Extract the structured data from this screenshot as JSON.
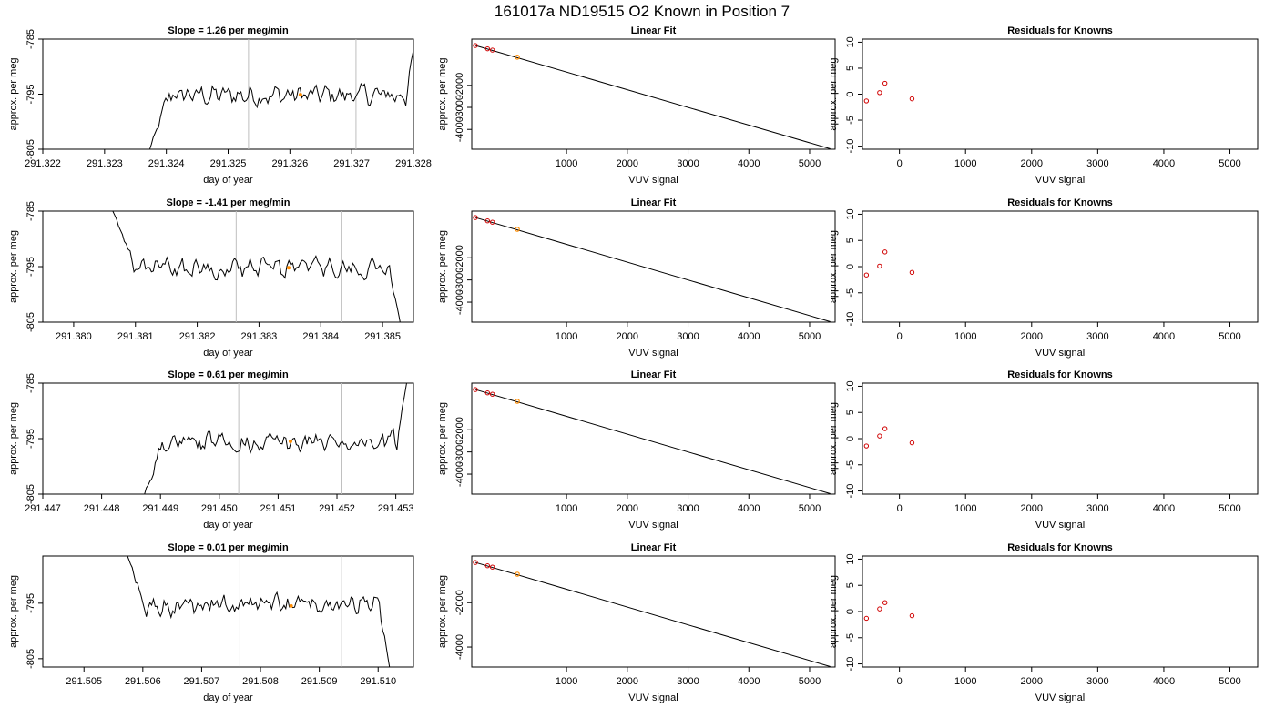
{
  "main_title": "161017a     ND19515   O2 Known in Position  7",
  "colors": {
    "trace": "#000000",
    "marker": "#FF8C00",
    "residual": "#D00000",
    "vline": "#BEBEBE"
  },
  "chart_data": [
    {
      "type": "line",
      "row": 0,
      "col": 0,
      "title": "Slope =  1.26  per meg/min",
      "xlabel": "day of year",
      "ylabel": "approx. per meg",
      "xlim": [
        291.322,
        291.328
      ],
      "ylim": [
        -805,
        -785
      ],
      "x_ticks": [
        "291.322",
        "291.323",
        "291.324",
        "291.325",
        "291.326",
        "291.327",
        "291.328"
      ],
      "y_ticks": [
        "-805",
        "-795",
        "-785"
      ],
      "x_start": 291.3237,
      "x_end": 291.32805,
      "trace_start_y": -806,
      "trace_end_y": -784,
      "trace_mean": -795.2,
      "trace_amplitude": 2.5,
      "vlines": [
        291.32533,
        291.32707
      ],
      "marker": {
        "x": 291.32617,
        "y": -795.1
      }
    },
    {
      "type": "scatter",
      "row": 0,
      "col": 1,
      "title": "Linear Fit",
      "xlabel": "VUV signal",
      "ylabel": "approx. per meg",
      "xlim": [
        -560,
        5420
      ],
      "ylim": [
        -4900,
        100
      ],
      "x_ticks": [
        "1000",
        "2000",
        "3000",
        "4000",
        "5000"
      ],
      "y_ticks": [
        "-4000",
        "-3000",
        "-2000"
      ],
      "line_from": [
        -500,
        -190
      ],
      "line_to": [
        5340,
        -4880
      ],
      "points": [
        [
          -500,
          -190
        ],
        [
          -300,
          -340
        ],
        [
          -220,
          -400
        ]
      ],
      "marker": {
        "x": 190,
        "y": -720
      }
    },
    {
      "type": "scatter",
      "row": 0,
      "col": 2,
      "title": "Residuals for Knowns",
      "xlabel": "VUV signal",
      "ylabel": "approx. per meg",
      "xlim": [
        -560,
        5420
      ],
      "ylim": [
        -10.6,
        10.6
      ],
      "x_ticks": [
        "0",
        "1000",
        "2000",
        "3000",
        "4000",
        "5000"
      ],
      "y_ticks": [
        "-10",
        "-5",
        "0",
        "5",
        "10"
      ],
      "points": [
        [
          -500,
          -1.3
        ],
        [
          -300,
          0.3
        ],
        [
          -220,
          2.1
        ],
        [
          190,
          -0.9
        ]
      ]
    },
    {
      "type": "line",
      "row": 1,
      "col": 0,
      "title": "Slope =  -1.41  per meg/min",
      "xlabel": "day of year",
      "ylabel": "approx. per meg",
      "xlim": [
        291.3795,
        291.3855
      ],
      "ylim": [
        -805,
        -785
      ],
      "x_ticks": [
        "291.380",
        "291.381",
        "291.382",
        "291.383",
        "291.384",
        "291.385"
      ],
      "y_ticks": [
        "-805",
        "-795",
        "-785"
      ],
      "x_start": 291.3806,
      "x_end": 291.3853,
      "trace_start_y": -784,
      "trace_end_y": -806,
      "trace_mean": -795.3,
      "trace_amplitude": 2.3,
      "vlines": [
        291.38263,
        291.38433
      ],
      "marker": {
        "x": 291.38348,
        "y": -795.2
      }
    },
    {
      "type": "scatter",
      "row": 1,
      "col": 1,
      "title": "Linear Fit",
      "xlabel": "VUV signal",
      "ylabel": "approx. per meg",
      "xlim": [
        -560,
        5420
      ],
      "ylim": [
        -4900,
        100
      ],
      "x_ticks": [
        "1000",
        "2000",
        "3000",
        "4000",
        "5000"
      ],
      "y_ticks": [
        "-4000",
        "-3000",
        "-2000"
      ],
      "line_from": [
        -500,
        -190
      ],
      "line_to": [
        5340,
        -4880
      ],
      "points": [
        [
          -500,
          -190
        ],
        [
          -300,
          -340
        ],
        [
          -220,
          -400
        ]
      ],
      "marker": {
        "x": 190,
        "y": -720
      }
    },
    {
      "type": "scatter",
      "row": 1,
      "col": 2,
      "title": "Residuals for Knowns",
      "xlabel": "VUV signal",
      "ylabel": "approx. per meg",
      "xlim": [
        -560,
        5420
      ],
      "ylim": [
        -10.6,
        10.6
      ],
      "x_ticks": [
        "0",
        "1000",
        "2000",
        "3000",
        "4000",
        "5000"
      ],
      "y_ticks": [
        "-10",
        "-5",
        "0",
        "5",
        "10"
      ],
      "points": [
        [
          -500,
          -1.6
        ],
        [
          -300,
          0.1
        ],
        [
          -220,
          2.8
        ],
        [
          190,
          -1.1
        ]
      ]
    },
    {
      "type": "line",
      "row": 2,
      "col": 0,
      "title": "Slope =  0.61  per meg/min",
      "xlabel": "day of year",
      "ylabel": "approx. per meg",
      "xlim": [
        291.447,
        291.4533
      ],
      "ylim": [
        -805,
        -785
      ],
      "x_ticks": [
        "291.447",
        "291.448",
        "291.449",
        "291.450",
        "291.451",
        "291.452",
        "291.453"
      ],
      "y_ticks": [
        "-805",
        "-795",
        "-785"
      ],
      "x_start": 291.4487,
      "x_end": 291.4532,
      "trace_start_y": -806,
      "trace_end_y": -784,
      "trace_mean": -795.6,
      "trace_amplitude": 2.3,
      "vlines": [
        291.45033,
        291.45207
      ],
      "marker": {
        "x": 291.45121,
        "y": -795.5
      }
    },
    {
      "type": "scatter",
      "row": 2,
      "col": 1,
      "title": "Linear Fit",
      "xlabel": "VUV signal",
      "ylabel": "approx. per meg",
      "xlim": [
        -560,
        5420
      ],
      "ylim": [
        -4900,
        100
      ],
      "x_ticks": [
        "1000",
        "2000",
        "3000",
        "4000",
        "5000"
      ],
      "y_ticks": [
        "-4000",
        "-3000",
        "-2000"
      ],
      "line_from": [
        -500,
        -190
      ],
      "line_to": [
        5340,
        -4880
      ],
      "points": [
        [
          -500,
          -190
        ],
        [
          -300,
          -340
        ],
        [
          -220,
          -400
        ]
      ],
      "marker": {
        "x": 190,
        "y": -720
      }
    },
    {
      "type": "scatter",
      "row": 2,
      "col": 2,
      "title": "Residuals for Knowns",
      "xlabel": "VUV signal",
      "ylabel": "approx. per meg",
      "xlim": [
        -560,
        5420
      ],
      "ylim": [
        -10.6,
        10.6
      ],
      "x_ticks": [
        "0",
        "1000",
        "2000",
        "3000",
        "4000",
        "5000"
      ],
      "y_ticks": [
        "-10",
        "-5",
        "0",
        "5",
        "10"
      ],
      "points": [
        [
          -500,
          -1.4
        ],
        [
          -300,
          0.5
        ],
        [
          -220,
          1.9
        ],
        [
          190,
          -0.8
        ]
      ]
    },
    {
      "type": "line",
      "row": 3,
      "col": 0,
      "title": "Slope =  0.01  per meg/min",
      "xlabel": "day of year",
      "ylabel": "approx. per meg",
      "xlim": [
        291.5043,
        291.5106
      ],
      "ylim": [
        -806.5,
        -786.5
      ],
      "x_ticks": [
        "291.505",
        "291.506",
        "291.507",
        "291.508",
        "291.509",
        "291.510"
      ],
      "y_ticks": [
        "-805",
        "-795"
      ],
      "x_start": 291.5057,
      "x_end": 291.5102,
      "trace_start_y": -785.5,
      "trace_end_y": -807,
      "trace_mean": -795.4,
      "trace_amplitude": 2.3,
      "vlines": [
        291.50765,
        291.50938
      ],
      "marker": {
        "x": 291.50852,
        "y": -795.5
      }
    },
    {
      "type": "scatter",
      "row": 3,
      "col": 1,
      "title": "Linear Fit",
      "xlabel": "VUV signal",
      "ylabel": "approx. per meg",
      "xlim": [
        -560,
        5420
      ],
      "ylim": [
        -4900,
        100
      ],
      "x_ticks": [
        "1000",
        "2000",
        "3000",
        "4000",
        "5000"
      ],
      "y_ticks": [
        "-4000",
        "-2000"
      ],
      "line_from": [
        -500,
        -190
      ],
      "line_to": [
        5340,
        -4880
      ],
      "points": [
        [
          -500,
          -190
        ],
        [
          -300,
          -340
        ],
        [
          -220,
          -400
        ]
      ],
      "marker": {
        "x": 190,
        "y": -720
      }
    },
    {
      "type": "scatter",
      "row": 3,
      "col": 2,
      "title": "Residuals for Knowns",
      "xlabel": "VUV signal",
      "ylabel": "approx. per meg",
      "xlim": [
        -560,
        5420
      ],
      "ylim": [
        -10.6,
        10.6
      ],
      "x_ticks": [
        "0",
        "1000",
        "2000",
        "3000",
        "4000",
        "5000"
      ],
      "y_ticks": [
        "-10",
        "-5",
        "0",
        "5",
        "10"
      ],
      "points": [
        [
          -500,
          -1.3
        ],
        [
          -300,
          0.5
        ],
        [
          -220,
          1.7
        ],
        [
          190,
          -0.8
        ]
      ]
    }
  ]
}
